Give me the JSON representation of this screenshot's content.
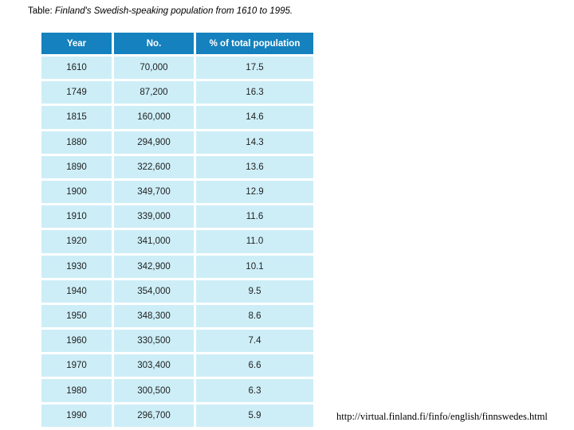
{
  "page": {
    "title_prefix": "Table:",
    "title_italic": "Finland's Swedish-speaking population from 1610 to 1995.",
    "source_url": "http://virtual.finland.fi/finfo/english/finnswedes.html"
  },
  "colors": {
    "header_bg": "#1581BE",
    "header_text": "#FFFFFF",
    "cell_bg": "#CDEEF7",
    "cell_text": "#1F1F1F",
    "page_bg": "#FFFFFF"
  },
  "table": {
    "columns": [
      "Year",
      "No.",
      "% of total population"
    ],
    "rows": [
      [
        "1610",
        "70,000",
        "17.5"
      ],
      [
        "1749",
        "87,200",
        "16.3"
      ],
      [
        "1815",
        "160,000",
        "14.6"
      ],
      [
        "1880",
        "294,900",
        "14.3"
      ],
      [
        "1890",
        "322,600",
        "13.6"
      ],
      [
        "1900",
        "349,700",
        "12.9"
      ],
      [
        "1910",
        "339,000",
        "11.6"
      ],
      [
        "1920",
        "341,000",
        "11.0"
      ],
      [
        "1930",
        "342,900",
        "10.1"
      ],
      [
        "1940",
        "354,000",
        "9.5"
      ],
      [
        "1950",
        "348,300",
        "8.6"
      ],
      [
        "1960",
        "330,500",
        "7.4"
      ],
      [
        "1970",
        "303,400",
        "6.6"
      ],
      [
        "1980",
        "300,500",
        "6.3"
      ],
      [
        "1990",
        "296,700",
        "5.9"
      ]
    ]
  },
  "chart_data": {
    "type": "table",
    "title": "Finland's Swedish-speaking population from 1610 to 1995",
    "columns": [
      "Year",
      "No.",
      "% of total population"
    ],
    "categories": [
      1610,
      1749,
      1815,
      1880,
      1890,
      1900,
      1910,
      1920,
      1930,
      1940,
      1950,
      1960,
      1970,
      1980,
      1990
    ],
    "series": [
      {
        "name": "No.",
        "values": [
          70000,
          87200,
          160000,
          294900,
          322600,
          349700,
          339000,
          341000,
          342900,
          354000,
          348300,
          330500,
          303400,
          300500,
          296700
        ]
      },
      {
        "name": "% of total population",
        "values": [
          17.5,
          16.3,
          14.6,
          14.3,
          13.6,
          12.9,
          11.6,
          11.0,
          10.1,
          9.5,
          8.6,
          7.4,
          6.6,
          6.3,
          5.9
        ]
      }
    ]
  }
}
